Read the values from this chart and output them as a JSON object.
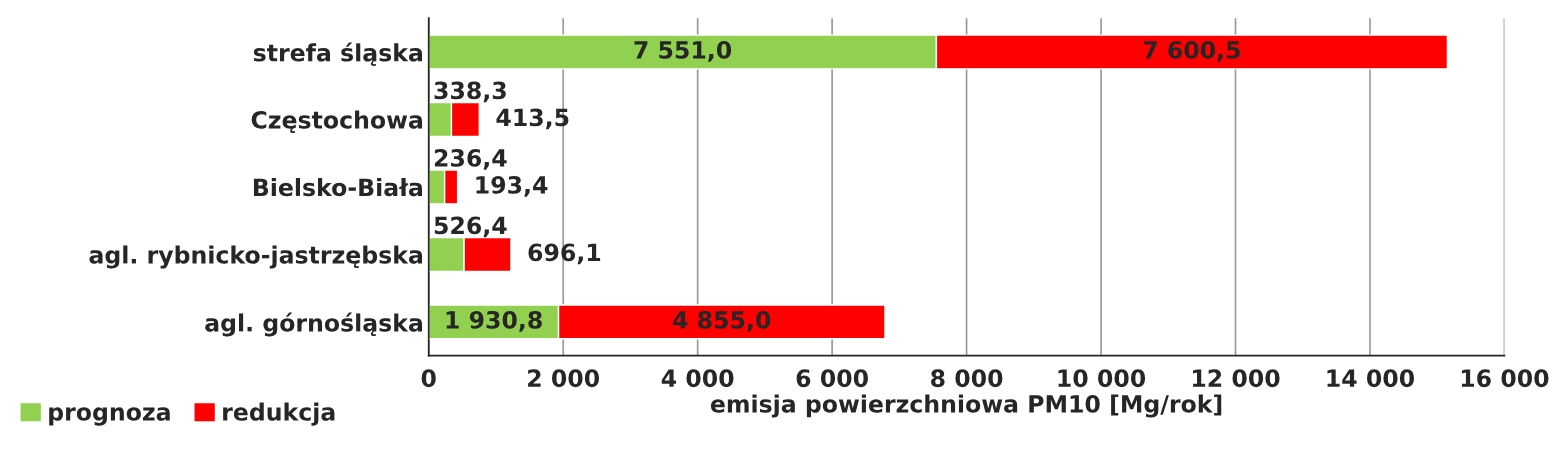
{
  "chart_data": {
    "type": "bar",
    "orientation": "horizontal",
    "stacked": true,
    "categories": [
      "strefa śląska",
      "Częstochowa",
      "Bielsko-Biała",
      "agl. rybnicko-jastrzębska",
      "agl. górnośląska"
    ],
    "series": [
      {
        "name": "prognoza",
        "color": "#92d050",
        "values": [
          7551.0,
          338.3,
          236.4,
          526.4,
          1930.8
        ],
        "value_labels": [
          "7 551,0",
          "338,3",
          "236,4",
          "526,4",
          "1 930,8"
        ]
      },
      {
        "name": "redukcja",
        "color": "#ff0000",
        "values": [
          7600.5,
          413.5,
          193.4,
          696.1,
          4855.0
        ],
        "value_labels": [
          "7 600,5",
          "413,5",
          "193,4",
          "696,1",
          "4 855,0"
        ]
      }
    ],
    "xlabel": "emisja powierzchniowa PM10 [Mg/rok]",
    "xlim": [
      0,
      16000
    ],
    "xticks": [
      0,
      {
        "value": 2000,
        "label": "2 000"
      },
      {
        "value": 4000,
        "label": "4 000"
      },
      {
        "value": 6000,
        "label": "6 000"
      },
      {
        "value": 8000,
        "label": "8 000"
      },
      {
        "value": 10000,
        "label": "10 000"
      },
      {
        "value": 12000,
        "label": "12 000"
      },
      {
        "value": 14000,
        "label": "14 000"
      },
      {
        "value": 16000,
        "label": "16 000"
      }
    ],
    "grid": "x",
    "legend": "bottom left"
  }
}
